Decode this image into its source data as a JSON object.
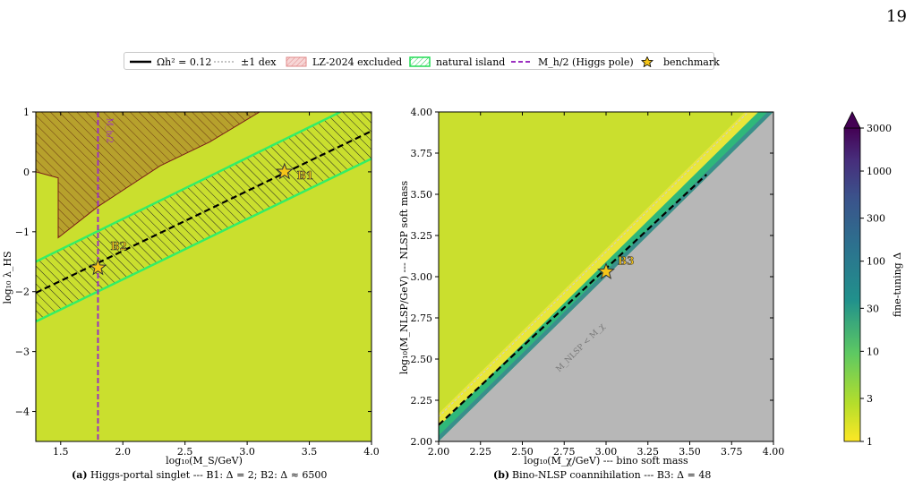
{
  "page_number": "19",
  "legend": {
    "items": [
      {
        "label": "Ωh² = 0.12",
        "symbol": "solid-black-line"
      },
      {
        "label": "±1 dex",
        "symbol": "dashed-gray-line"
      },
      {
        "label": "LZ-2024 excluded",
        "symbol": "red-hatched-patch"
      },
      {
        "label": "natural island",
        "symbol": "green-hatched-patch"
      },
      {
        "label": "M_h/2 (Higgs pole)",
        "symbol": "purple-dashed-line"
      },
      {
        "label": "benchmark",
        "symbol": "gold-star"
      }
    ]
  },
  "colors": {
    "background_fill": "#cadf2e",
    "excluded_fill": "#b7a12c",
    "excluded_edge": "#7a1a1a",
    "island_edge": "#33ee66",
    "higgs_pole": "#9b30c0",
    "star": "#f5c518",
    "forbidden_gray": "#b7b7b7",
    "band_green": "#2fb87a",
    "band_teal": "#3a8f8c"
  },
  "chart_data": [
    {
      "type": "heatmap",
      "panel": "a",
      "xlabel": "log₁₀(M_S/GeV)",
      "ylabel": "log₁₀ λ_HS",
      "xlim": [
        1.3,
        4.0
      ],
      "ylim": [
        -4.5,
        1.0
      ],
      "xticks": [
        "1.5",
        "2.0",
        "2.5",
        "3.0",
        "3.5",
        "4.0"
      ],
      "yticks": [
        "1",
        "0",
        "−1",
        "−2",
        "−3",
        "−4"
      ],
      "relic_line": {
        "x": [
          1.3,
          4.0
        ],
        "y": [
          -2.02,
          0.68
        ]
      },
      "island_upper": {
        "x": [
          1.3,
          3.75
        ],
        "y": [
          -1.5,
          1.0
        ]
      },
      "island_lower": {
        "x": [
          1.3,
          4.0
        ],
        "y": [
          -2.5,
          0.22
        ]
      },
      "excluded_region": {
        "x": [
          1.3,
          1.48,
          1.48,
          1.8,
          2.3,
          2.7,
          3.1
        ],
        "y": [
          0.0,
          -0.1,
          -1.1,
          -0.58,
          0.1,
          0.5,
          1.0
        ]
      },
      "higgs_pole_x": 1.8,
      "higgs_pole_label": "M_h/2",
      "benchmarks": [
        {
          "name": "B1",
          "x": 3.3,
          "y": 0.0
        },
        {
          "name": "B2",
          "x": 1.8,
          "y": -1.6
        }
      ],
      "caption": {
        "tag": "(a)",
        "text": "Higgs-portal singlet --- B1: Δ = 2; B2: Δ ≈ 6500"
      }
    },
    {
      "type": "heatmap",
      "panel": "b",
      "xlabel": "log₁₀(M_χ/GeV) --- bino soft mass",
      "ylabel": "log₁₀(M_NLSP/GeV) --- NLSP soft mass",
      "xlim": [
        2.0,
        4.0
      ],
      "ylim": [
        2.0,
        4.0
      ],
      "xticks": [
        "2.00",
        "2.25",
        "2.50",
        "2.75",
        "3.00",
        "3.25",
        "3.50",
        "3.75",
        "4.00"
      ],
      "yticks": [
        "4.00",
        "3.75",
        "3.50",
        "3.25",
        "3.00",
        "2.75",
        "2.50",
        "2.25",
        "2.00"
      ],
      "forbidden_label": "M_NLSP < M_χ",
      "relic_line": {
        "x": [
          2.0,
          3.6
        ],
        "y": [
          2.1,
          3.62
        ]
      },
      "benchmarks": [
        {
          "name": "B3",
          "x": 3.0,
          "y": 3.03
        }
      ],
      "caption": {
        "tag": "(b)",
        "text": "Bino-NLSP coannihilation --- B3: Δ = 48"
      }
    }
  ],
  "colorbar": {
    "label": "fine-tuning Δ",
    "ticks": [
      "3000",
      "1000",
      "300",
      "100",
      "30",
      "10",
      "3",
      "1"
    ],
    "range": [
      1,
      3000
    ],
    "scale": "log"
  }
}
